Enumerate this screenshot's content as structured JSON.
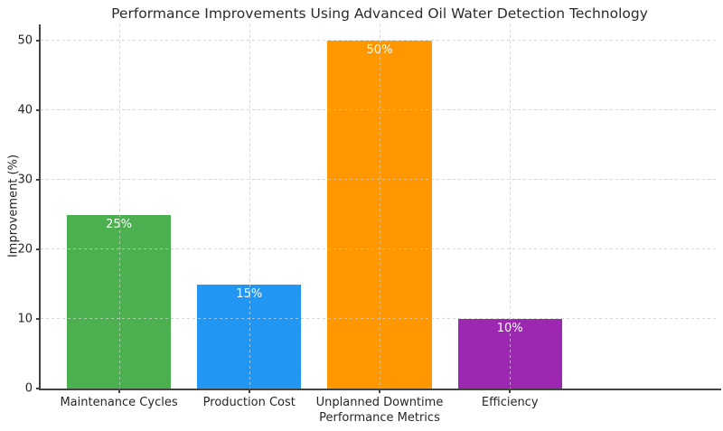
{
  "chart_data": {
    "type": "bar",
    "title": "Performance Improvements Using Advanced Oil Water Detection Technology",
    "xlabel": "Performance Metrics",
    "ylabel": "Improvement (%)",
    "categories": [
      "Maintenance Cycles",
      "Production Cost",
      "Unplanned Downtime",
      "Efficiency"
    ],
    "values": [
      25,
      15,
      50,
      10
    ],
    "bar_value_labels": [
      "25%",
      "15%",
      "50%",
      "10%"
    ],
    "bar_colors": [
      "#4CAF50",
      "#2196F3",
      "#FF9800",
      "#9C27B0"
    ],
    "yticks": [
      0,
      10,
      20,
      30,
      40,
      50
    ],
    "ylim": [
      0,
      52.4
    ],
    "grid": "dashed light-gray gridlines on both axes, drawn over bars",
    "legend": "none",
    "value_label_color": "#ffffff",
    "axis_color": "#444444",
    "grid_color": "#c9c9c9",
    "text_color": "#262626",
    "background_color": "#ffffff"
  }
}
